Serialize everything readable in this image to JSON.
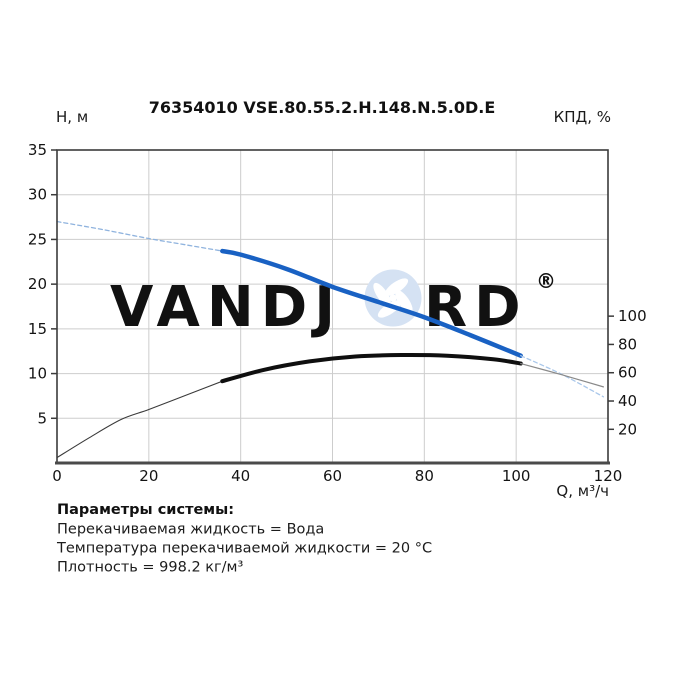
{
  "header": {
    "title": "76354010 VSE.80.55.2.H.148.N.5.0D.E",
    "left_axis_label": "Н, м",
    "right_axis_label": "КПД, %",
    "x_axis_label": "Q, м³/ч"
  },
  "watermark": {
    "text_left": "VANDJ",
    "text_right": "RD",
    "registered_mark": "®",
    "text_color": "#e3ecf8",
    "logo_color": "#d5e2f3"
  },
  "colors": {
    "head_curve": "#1961c3",
    "head_curve_thin": "#8fb3de",
    "head_curve_tail": "#a9c7ea",
    "efficiency_curve": "#0f0f0f",
    "efficiency_curve_thin": "#3a3a3a",
    "efficiency_curve_tail": "#8a8a8a",
    "grid": "#cdcdcd",
    "frame": "#3b3b3b",
    "bottom_axis": "#4a4a4a"
  },
  "chart_data": {
    "type": "line",
    "title": "76354010 VSE.80.55.2.H.148.N.5.0D.E",
    "xlabel": "Q, м³/ч",
    "ylabel_left": "Н, м",
    "ylabel_right": "КПД, %",
    "xlim": [
      0,
      120
    ],
    "ylim_left": [
      0,
      35
    ],
    "x_ticks": [
      0,
      20,
      40,
      60,
      80,
      100,
      120
    ],
    "y_ticks_left": [
      5,
      10,
      15,
      20,
      25,
      30,
      35
    ],
    "y_ticks_right": [
      20,
      40,
      60,
      80,
      100
    ],
    "grid": true,
    "legend": "none",
    "operating_range_q": [
      36,
      101
    ],
    "series": [
      {
        "name": "head",
        "axis": "left",
        "units": "м",
        "points": [
          [
            0,
            27.0
          ],
          [
            10,
            26.1
          ],
          [
            20,
            25.1
          ],
          [
            28,
            24.4
          ],
          [
            36,
            23.7
          ],
          [
            40,
            23.3
          ],
          [
            50,
            21.7
          ],
          [
            60,
            19.7
          ],
          [
            70,
            18.0
          ],
          [
            80,
            16.3
          ],
          [
            90,
            14.3
          ],
          [
            101,
            12.0
          ],
          [
            110,
            9.9
          ],
          [
            119,
            7.4
          ]
        ]
      },
      {
        "name": "efficiency",
        "axis": "right",
        "units": "%",
        "points": [
          [
            0,
            0
          ],
          [
            7,
            14
          ],
          [
            14,
            27
          ],
          [
            20,
            34
          ],
          [
            28,
            44
          ],
          [
            36,
            54
          ],
          [
            45,
            62
          ],
          [
            55,
            68
          ],
          [
            65,
            71.5
          ],
          [
            75,
            72.5
          ],
          [
            85,
            72.0
          ],
          [
            95,
            69.5
          ],
          [
            101,
            66.5
          ],
          [
            110,
            58.5
          ],
          [
            119,
            50
          ]
        ]
      }
    ]
  },
  "system_parameters": {
    "heading": "Параметры системы:",
    "lines": [
      "Перекачиваемая жидкость = Вода",
      "Температура перекачиваемой жидкости = 20 °C",
      "Плотность = 998.2 кг/м³"
    ]
  }
}
